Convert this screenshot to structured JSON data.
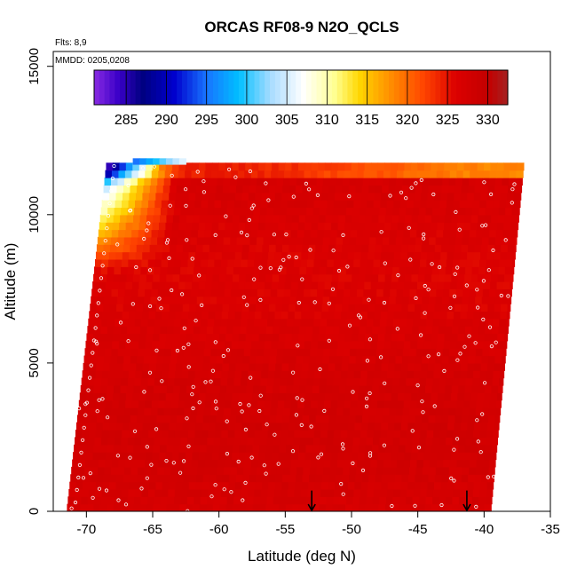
{
  "chart_data": {
    "type": "heatmap",
    "title": "ORCAS RF08-9 N2O_QCLS",
    "flights_label": "Flts: 8,9",
    "mmdd_label": "MMDD: 0205,0208",
    "xlabel": "Latitude (deg N)",
    "ylabel": "Altitude (m)",
    "xlim": [
      -72.5,
      -35
    ],
    "ylim": [
      0,
      15500
    ],
    "x_ticks": [
      -70,
      -65,
      -60,
      -55,
      -50,
      -45,
      -40,
      -35
    ],
    "x_tick_labels": [
      "-70",
      "-65",
      "-60",
      "-55",
      "-50",
      "-45",
      "-40",
      "-35"
    ],
    "y_ticks": [
      0,
      5000,
      10000,
      15000
    ],
    "y_tick_labels": [
      "0",
      "5000",
      "10000",
      "15000"
    ],
    "colorbar": {
      "min": 281,
      "max": 332.5,
      "ticks": [
        285,
        290,
        295,
        300,
        305,
        310,
        315,
        320,
        325,
        330
      ],
      "tick_labels": [
        "285",
        "290",
        "295",
        "300",
        "305",
        "310",
        "315",
        "320",
        "325",
        "330"
      ],
      "stops": [
        {
          "v": 281,
          "c": "#8a2be2"
        },
        {
          "v": 284,
          "c": "#3a00c8"
        },
        {
          "v": 287,
          "c": "#000080"
        },
        {
          "v": 291,
          "c": "#0000cd"
        },
        {
          "v": 295,
          "c": "#1874ff"
        },
        {
          "v": 299,
          "c": "#00bfff"
        },
        {
          "v": 303,
          "c": "#a8dcff"
        },
        {
          "v": 307,
          "c": "#ffffff"
        },
        {
          "v": 311,
          "c": "#ffff90"
        },
        {
          "v": 314,
          "c": "#ffd700"
        },
        {
          "v": 318,
          "c": "#ff8c00"
        },
        {
          "v": 322,
          "c": "#ff4500"
        },
        {
          "v": 326,
          "c": "#dc0000"
        },
        {
          "v": 330,
          "c": "#c40000"
        },
        {
          "v": 332.5,
          "c": "#a52020"
        }
      ]
    },
    "field": {
      "lat_range_at_surface": [
        -71.5,
        -39.5
      ],
      "lat_range_at_top": [
        -68.5,
        -37.0
      ],
      "top_altitude": 11700,
      "background_value": 327,
      "southern_low_region": "values drop to ~283-310 near -68 to -63 deg N above ~9000 m",
      "tropopause_gradient": "values decrease to ~318-322 along the top layer at 11500 m"
    },
    "arrows": [
      {
        "lat": -53,
        "alt": 700
      },
      {
        "lat": -41.3,
        "alt": 700
      }
    ],
    "sample_points_note": "white open circles mark sample locations along flight tracks"
  }
}
